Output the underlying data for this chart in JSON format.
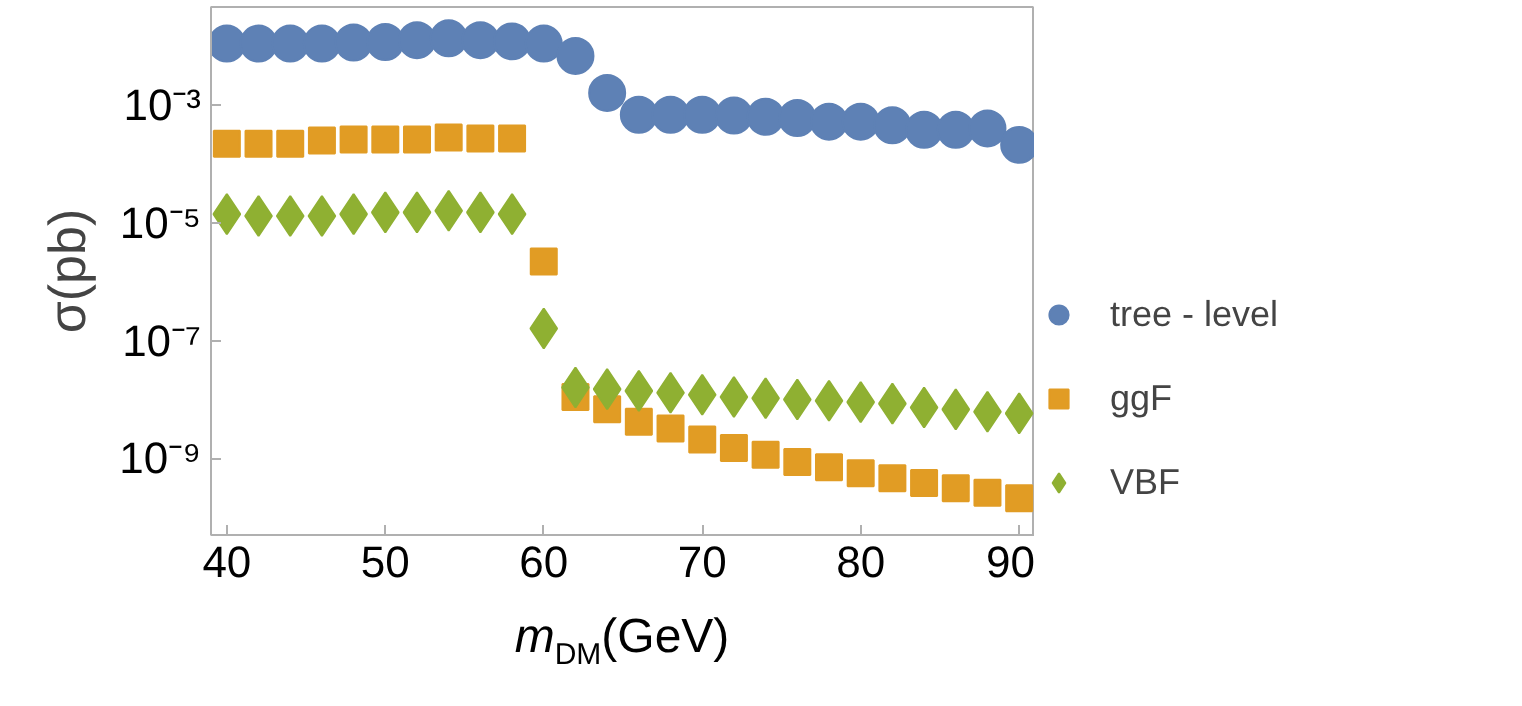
{
  "chart_data": {
    "type": "scatter",
    "xlabel": "m$_{DM}$(GeV)",
    "ylabel": "σ(pb)",
    "log": "y",
    "x": [
      40,
      42,
      44,
      46,
      48,
      50,
      52,
      54,
      56,
      58,
      60,
      62,
      64,
      66,
      68,
      70,
      72,
      74,
      76,
      78,
      80,
      82,
      84,
      86,
      88,
      90
    ],
    "xlim": [
      39,
      91
    ],
    "xticks": [
      40,
      50,
      60,
      70,
      80,
      90
    ],
    "ylim": [
      5e-11,
      0.046
    ],
    "yticks": [
      {
        "value": 0.001,
        "label": "10⁻³"
      },
      {
        "value": 1e-05,
        "label": "10⁻⁵"
      },
      {
        "value": 1e-07,
        "label": "10⁻⁷"
      },
      {
        "value": 1e-09,
        "label": "10⁻⁹"
      }
    ],
    "grid": false,
    "legend": "right",
    "series": [
      {
        "name": "tree - level",
        "color": "#5e81b5",
        "marker": "circle",
        "values": [
          0.011,
          0.011,
          0.011,
          0.011,
          0.0115,
          0.0117,
          0.0126,
          0.0135,
          0.0126,
          0.012,
          0.011,
          0.0068,
          0.0016,
          0.00068,
          0.00068,
          0.00068,
          0.00066,
          0.00063,
          0.0006,
          0.00052,
          0.00052,
          0.00045,
          0.00038,
          0.00038,
          0.0004,
          0.00021
        ]
      },
      {
        "name": "ggF",
        "color": "#e19c24",
        "marker": "square",
        "values": [
          0.00022,
          0.00022,
          0.00022,
          0.00025,
          0.00026,
          0.00026,
          0.00026,
          0.00028,
          0.00027,
          0.00027,
          2.2e-06,
          1.1e-08,
          6.8e-09,
          4.2e-09,
          3.2e-09,
          2.1e-09,
          1.5e-09,
          1.15e-09,
          8.7e-10,
          7.1e-10,
          5.6e-10,
          4.6e-10,
          3.8e-10,
          3.1e-10,
          2.6e-10,
          2.1e-10
        ]
      },
      {
        "name": "VBF",
        "color": "#8fb032",
        "marker": "diamond",
        "values": [
          1.4e-05,
          1.3e-05,
          1.3e-05,
          1.3e-05,
          1.4e-05,
          1.5e-05,
          1.5e-05,
          1.6e-05,
          1.5e-05,
          1.4e-05,
          1.6e-07,
          1.6e-08,
          1.5e-08,
          1.4e-08,
          1.3e-08,
          1.2e-08,
          1.1e-08,
          1.05e-08,
          1e-08,
          9.5e-09,
          9e-09,
          8.5e-09,
          7.3e-09,
          6.8e-09,
          6.2e-09,
          5.8e-09
        ]
      }
    ]
  }
}
